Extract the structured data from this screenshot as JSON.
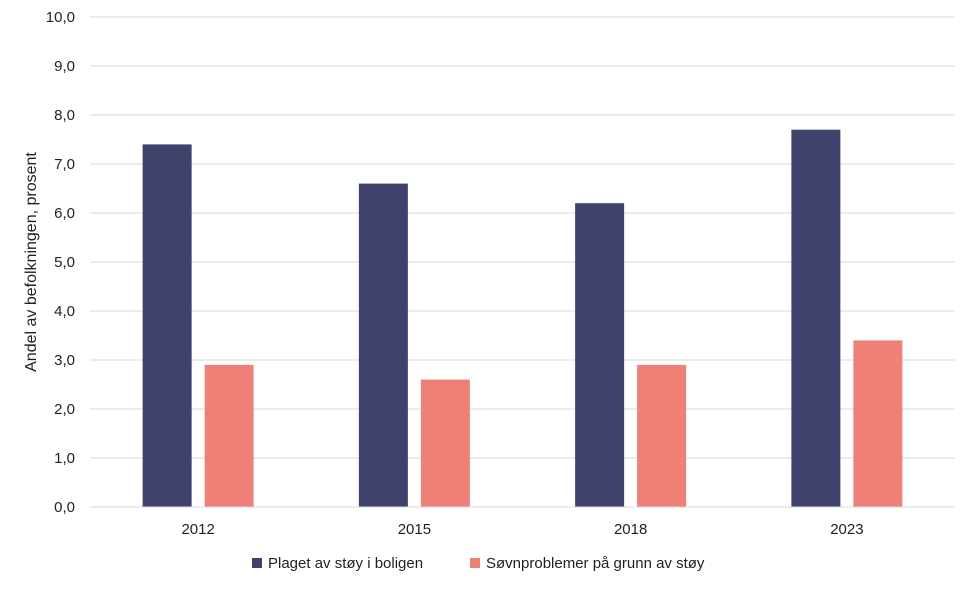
{
  "chart_data": {
    "type": "bar",
    "categories": [
      "2012",
      "2015",
      "2018",
      "2023"
    ],
    "series": [
      {
        "name": "Plaget av støy i boligen",
        "color": "#40426e",
        "values": [
          7.4,
          6.6,
          6.2,
          7.7
        ]
      },
      {
        "name": "Søvnproblemer på grunn av støy",
        "color": "#ee8078",
        "values": [
          2.9,
          2.6,
          2.9,
          3.4
        ]
      }
    ],
    "ylabel": "Andel av befolkningen, prosent",
    "xlabel": "",
    "title": "",
    "ylim": [
      0,
      10
    ],
    "yticks": [
      "0,0",
      "1,0",
      "2,0",
      "3,0",
      "4,0",
      "5,0",
      "6,0",
      "7,0",
      "8,0",
      "9,0",
      "10,0"
    ],
    "grid": true,
    "legend_position": "bottom"
  }
}
